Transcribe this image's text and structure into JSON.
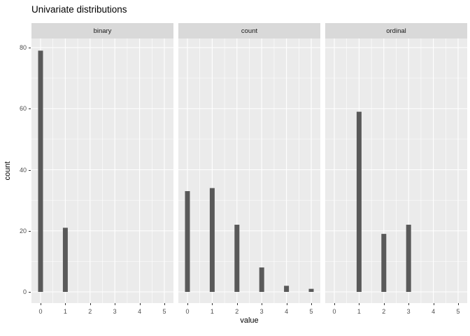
{
  "title": "Univariate distributions",
  "chart_data": {
    "type": "bar",
    "title": "Univariate distributions",
    "xlabel": "value",
    "ylabel": "count",
    "categories": [
      0,
      1,
      2,
      3,
      4,
      5
    ],
    "x_ticks": [
      "0",
      "1",
      "2",
      "3",
      "4",
      "5"
    ],
    "y_ticks": [
      "0",
      "20",
      "40",
      "60",
      "80"
    ],
    "y_tick_values": [
      0,
      20,
      40,
      60,
      80
    ],
    "y_minor_values": [
      10,
      30,
      50,
      70
    ],
    "ylim": [
      0,
      83
    ],
    "grid": "on",
    "legend": "none",
    "facets": [
      {
        "label": "binary",
        "values": [
          79,
          21,
          0,
          0,
          0,
          0
        ]
      },
      {
        "label": "count",
        "values": [
          33,
          34,
          22,
          8,
          2,
          1
        ]
      },
      {
        "label": "ordinal",
        "values": [
          0,
          59,
          19,
          22,
          0,
          0
        ]
      }
    ]
  },
  "colors": {
    "bar": "#595959",
    "panel_bg": "#ebebeb",
    "strip_bg": "#d9d9d9",
    "grid": "#ffffff",
    "axis_text": "#4d4d4d",
    "strip_text": "#1a1a1a",
    "title_text": "#000000",
    "tick": "#333333"
  }
}
